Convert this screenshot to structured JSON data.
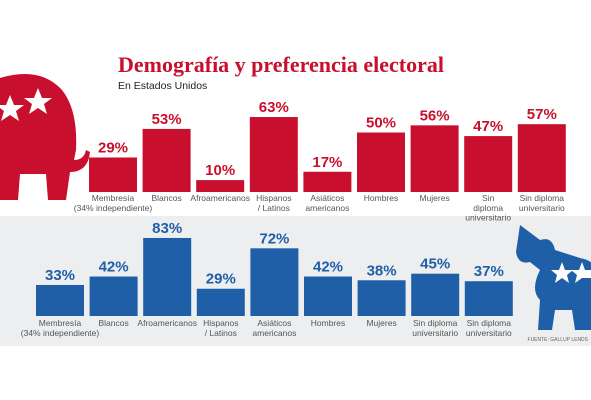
{
  "header": {
    "title": "Demografía y preferencia electoral",
    "subtitle": "En Estados Unidos",
    "source": "FUENTE: GALLUP LENDS"
  },
  "chart_data": [
    {
      "type": "bar",
      "color": "#c8102e",
      "categories": [
        "Membresía\n(34% independiente)",
        "Blancos",
        "Afroamericanos",
        "Hispanos\n/ Latinos",
        "Asiáticos\namericanos",
        "Hombres",
        "Mujeres",
        "Sin\ndiploma\nuniversitario",
        "Sin diploma\nuniversitario"
      ],
      "values": [
        29,
        53,
        10,
        63,
        17,
        50,
        56,
        47,
        57
      ],
      "value_labels": [
        "29%",
        "53%",
        "10%",
        "63%",
        "17%",
        "50%",
        "56%",
        "47%",
        "57%"
      ]
    },
    {
      "type": "bar",
      "color": "#1f5fa8",
      "categories": [
        "Membresía\n(34% independiente)",
        "Blancos",
        "Afroamericanos",
        "Hispanos\n/ Latinos",
        "Asiáticos\namericanos",
        "Hombres",
        "Mujeres",
        "Sin diploma\nuniversitario",
        "Sin diploma\nuniversitario"
      ],
      "values": [
        33,
        42,
        83,
        29,
        72,
        42,
        38,
        45,
        37
      ],
      "value_labels": [
        "33%",
        "42%",
        "83%",
        "29%",
        "72%",
        "42%",
        "38%",
        "45%",
        "37%"
      ]
    }
  ]
}
